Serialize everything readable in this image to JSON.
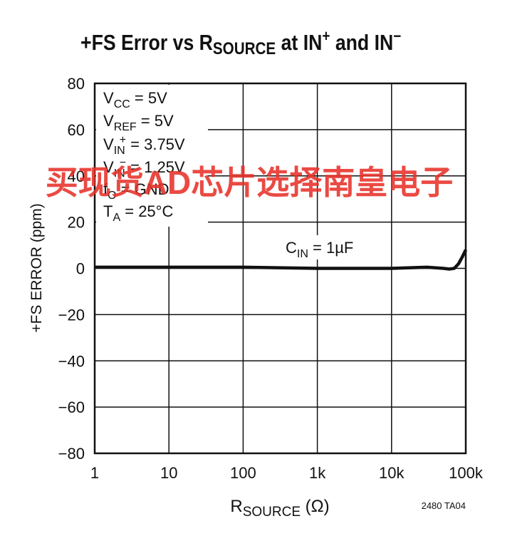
{
  "title": [
    "+FS Error vs R",
    "SOURCE",
    " at IN",
    "+",
    " and IN",
    "−"
  ],
  "chart_data": {
    "type": "line",
    "xscale": "log",
    "grid": true,
    "xlim": [
      1,
      100000
    ],
    "xticks": [
      1,
      10,
      100,
      {
        "value": 1000,
        "label": "1k"
      },
      {
        "value": 10000,
        "label": "10k"
      },
      {
        "value": 100000,
        "label": "100k"
      }
    ],
    "ylim": [
      -80,
      80
    ],
    "yticks": [
      {
        "value": -80,
        "label": "−80"
      },
      {
        "value": -60,
        "label": "−60"
      },
      {
        "value": -40,
        "label": "−40"
      },
      {
        "value": -20,
        "label": "−20"
      },
      0,
      20,
      40,
      60,
      80
    ],
    "y_label": "+FS ERROR (ppm)",
    "x_label": [
      "R",
      "SOURCE",
      " (Ω)"
    ],
    "series": [
      {
        "color": "#111111",
        "x": [
          1,
          10,
          100,
          1000,
          10000,
          30000,
          50000,
          60000,
          70000,
          80000,
          90000,
          100000
        ],
        "values": [
          0.5,
          0.5,
          0.5,
          0,
          0,
          0.5,
          0,
          -0.3,
          0,
          2,
          5,
          8
        ]
      }
    ],
    "annotations": [
      [
        "V",
        "CC",
        " = 5V"
      ],
      [
        "V",
        "REF",
        " = 5V"
      ],
      [
        "V",
        "IN",
        "+",
        " = 3.75V"
      ],
      [
        "V",
        "IN",
        "−",
        " = 1.25V"
      ],
      [
        "f",
        "O",
        " = GND"
      ],
      [
        "T",
        "A",
        " = 25°C"
      ]
    ],
    "curve_label": [
      "C",
      "IN",
      " = 1µF"
    ]
  },
  "note": "2480 TA04",
  "watermark": "买现货AD芯片选择南皇电子"
}
